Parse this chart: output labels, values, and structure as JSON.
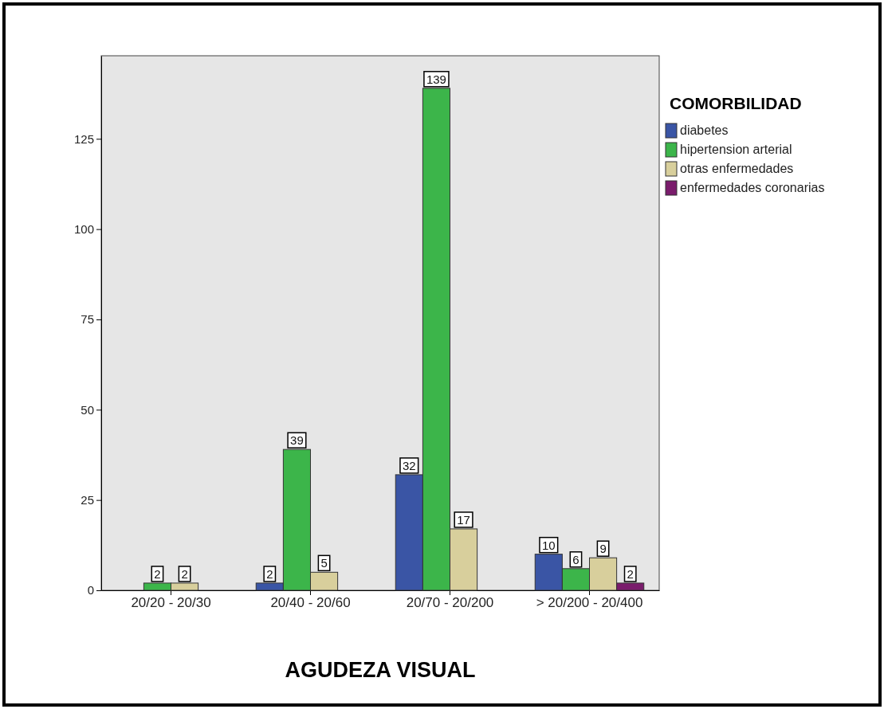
{
  "chart_data": {
    "type": "bar",
    "xlabel": "AGUDEZA VISUAL",
    "legend_title": "COMORBILIDAD",
    "categories": [
      "20/20 - 20/30",
      "20/40 - 20/60",
      "20/70 - 20/200",
      "> 20/200 - 20/400"
    ],
    "series": [
      {
        "name": "diabetes",
        "color": "#3a55a5",
        "values": [
          null,
          2,
          32,
          10
        ]
      },
      {
        "name": "hipertension arterial",
        "color": "#3cb54a",
        "values": [
          2,
          39,
          139,
          6
        ]
      },
      {
        "name": "otras enfermedades",
        "color": "#d8cf9c",
        "values": [
          2,
          5,
          17,
          9
        ]
      },
      {
        "name": "enfermedades coronarias",
        "color": "#7a1c6c",
        "values": [
          null,
          null,
          null,
          2
        ]
      }
    ],
    "ylim": [
      0,
      148
    ],
    "yticks": [
      0,
      25,
      50,
      75,
      100,
      125
    ],
    "grid": false,
    "legend": "right",
    "data_labels": true
  }
}
